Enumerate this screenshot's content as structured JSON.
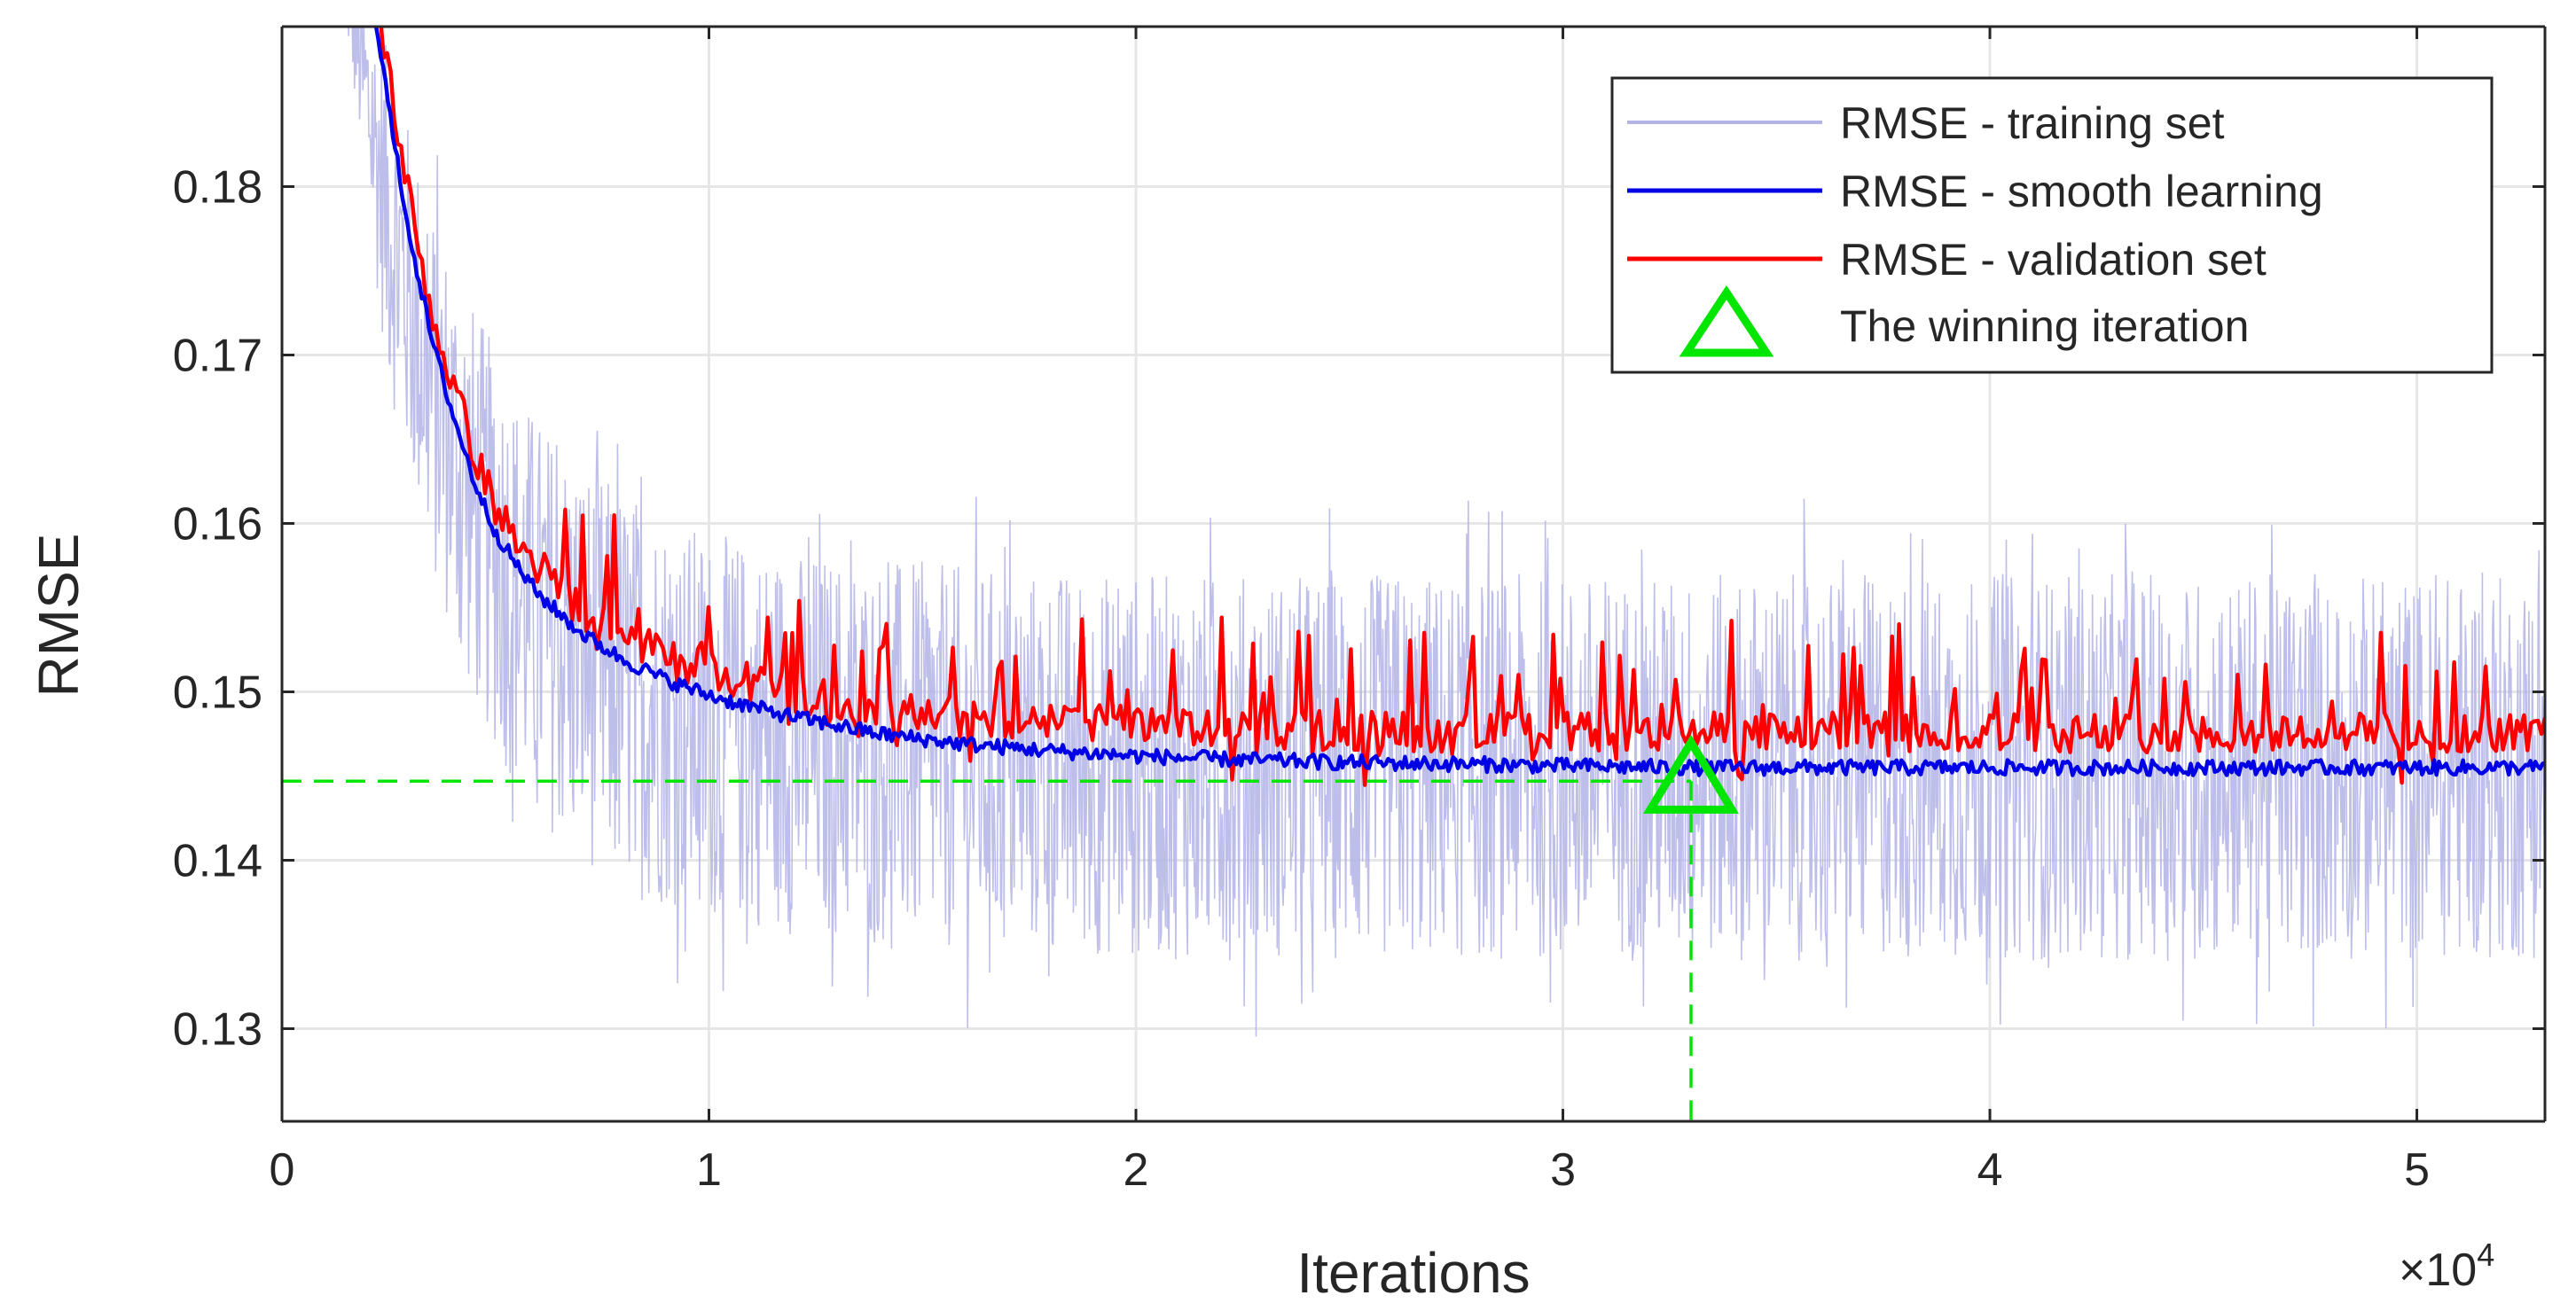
{
  "chart_data": {
    "type": "line",
    "xlabel": "Iterations",
    "ylabel": "RMSE",
    "x_exponent_label": "×10",
    "x_exponent_power": "4",
    "xlim": [
      0,
      53000
    ],
    "ylim": [
      0.1245,
      0.1895
    ],
    "x_ticks": [
      0,
      10000,
      20000,
      30000,
      40000,
      50000
    ],
    "x_tick_labels": [
      "0",
      "1",
      "2",
      "3",
      "4",
      "5"
    ],
    "y_ticks": [
      0.13,
      0.14,
      0.15,
      0.16,
      0.17,
      0.18
    ],
    "y_tick_labels": [
      "0.13",
      "0.14",
      "0.15",
      "0.16",
      "0.17",
      "0.18"
    ],
    "grid": true,
    "legend_position": "top-right",
    "series": [
      {
        "name": "RMSE - training set",
        "color": "#b3b3e6",
        "x": [
          1500,
          2500,
          3500,
          4500,
          5500,
          6500,
          7500,
          8500,
          10000,
          12000,
          14000,
          16000,
          18000,
          20000,
          25000,
          30000,
          35000,
          40000,
          45000,
          50000,
          53000
        ],
        "center": [
          0.192,
          0.178,
          0.168,
          0.161,
          0.156,
          0.153,
          0.151,
          0.1495,
          0.148,
          0.147,
          0.1465,
          0.146,
          0.1458,
          0.1456,
          0.1455,
          0.1455,
          0.1455,
          0.1455,
          0.1455,
          0.1455,
          0.1455
        ],
        "half_range": [
          0.003,
          0.01,
          0.011,
          0.012,
          0.012,
          0.012,
          0.012,
          0.012,
          0.0115,
          0.0115,
          0.0115,
          0.0115,
          0.0115,
          0.0115,
          0.0115,
          0.0115,
          0.0115,
          0.0115,
          0.0115,
          0.0115,
          0.0115
        ]
      },
      {
        "name": "RMSE - smooth learning",
        "color": "#0000e6",
        "x": [
          2200,
          2600,
          3000,
          3500,
          4000,
          4500,
          5000,
          5500,
          6000,
          7000,
          8000,
          9000,
          10000,
          11000,
          12000,
          14000,
          16000,
          18000,
          20000,
          22000,
          25000,
          28000,
          30000,
          33000,
          36000,
          40000,
          45000,
          50000,
          53000
        ],
        "y": [
          0.19,
          0.183,
          0.177,
          0.171,
          0.1665,
          0.1625,
          0.1595,
          0.1575,
          0.1558,
          0.1535,
          0.1519,
          0.1507,
          0.1498,
          0.1491,
          0.1485,
          0.1475,
          0.1469,
          0.1465,
          0.1462,
          0.146,
          0.1458,
          0.1457,
          0.1456,
          0.1455,
          0.1455,
          0.1455,
          0.1455,
          0.1455,
          0.1455
        ]
      },
      {
        "name": "RMSE - validation set",
        "color": "#ff0000",
        "x": [
          2300,
          2700,
          3100,
          3600,
          4100,
          4600,
          5100,
          5600,
          6200,
          7000,
          8000,
          9000,
          10000,
          11000,
          12000,
          14000,
          16000,
          18000,
          20000,
          22000,
          25000,
          28000,
          30000,
          33000,
          36000,
          40000,
          45000,
          50000,
          53000
        ],
        "y": [
          0.19,
          0.1835,
          0.1775,
          0.1715,
          0.1675,
          0.1635,
          0.1605,
          0.1585,
          0.157,
          0.1548,
          0.1532,
          0.152,
          0.1512,
          0.1505,
          0.1499,
          0.149,
          0.1485,
          0.1482,
          0.148,
          0.1478,
          0.1477,
          0.1476,
          0.1476,
          0.1476,
          0.1476,
          0.1476,
          0.1476,
          0.1476,
          0.1476
        ],
        "spike_amplitude": 0.005
      }
    ],
    "marker": {
      "name": "The winning iteration",
      "x": 33000,
      "y": 0.1447,
      "color": "#00e600",
      "shape": "triangle"
    }
  }
}
